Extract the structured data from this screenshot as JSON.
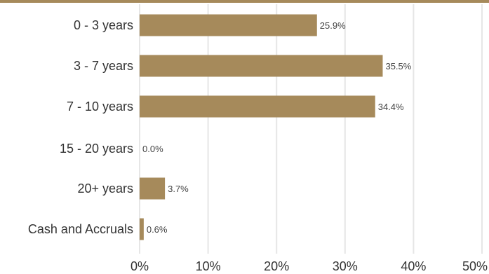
{
  "chart_data": {
    "type": "bar",
    "orientation": "horizontal",
    "categories": [
      "0 - 3 years",
      "3 - 7 years",
      "7 - 10 years",
      "15 - 20 years",
      "20+ years",
      "Cash and Accruals"
    ],
    "values": [
      25.9,
      35.5,
      34.4,
      0.0,
      3.7,
      0.6
    ],
    "data_labels": [
      "25.9%",
      "35.5%",
      "34.4%",
      "0.0%",
      "3.7%",
      "0.6%"
    ],
    "x_ticks": [
      "0%",
      "10%",
      "20%",
      "30%",
      "40%",
      "50%"
    ],
    "xlim": [
      0,
      50
    ],
    "grid": "vertical",
    "bar_color": "#a68a5b",
    "rule_color": "#a68a5b"
  }
}
